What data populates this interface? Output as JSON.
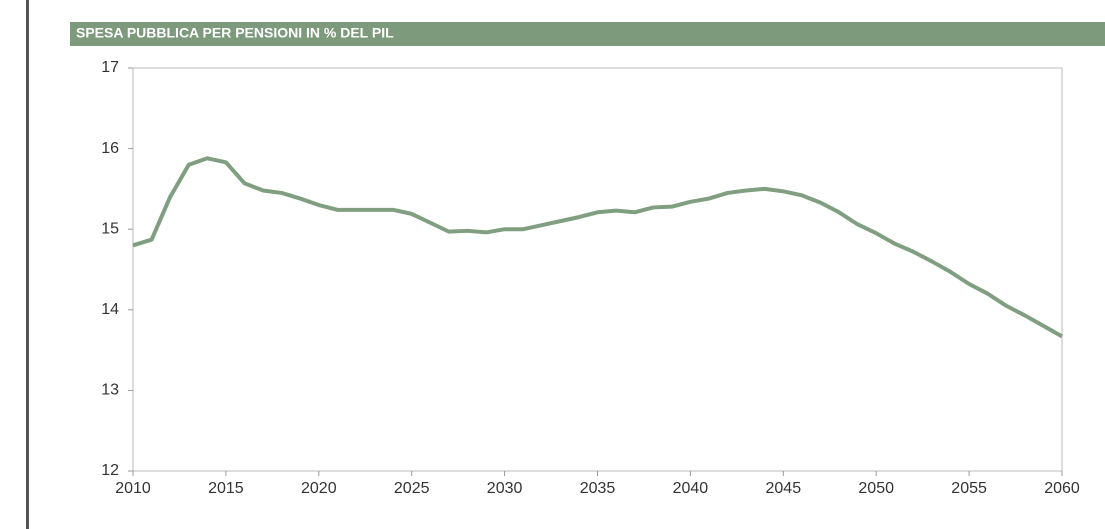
{
  "chart_data": {
    "type": "line",
    "title": "SPESA PUBBLICA PER PENSIONI IN % DEL PIL",
    "x": [
      2010,
      2011,
      2012,
      2013,
      2014,
      2015,
      2016,
      2017,
      2018,
      2019,
      2020,
      2021,
      2022,
      2023,
      2024,
      2025,
      2026,
      2027,
      2028,
      2029,
      2030,
      2031,
      2032,
      2033,
      2034,
      2035,
      2036,
      2037,
      2038,
      2039,
      2040,
      2041,
      2042,
      2043,
      2044,
      2045,
      2046,
      2047,
      2048,
      2049,
      2050,
      2051,
      2052,
      2053,
      2054,
      2055,
      2056,
      2057,
      2058,
      2059,
      2060
    ],
    "values": [
      14.8,
      14.87,
      15.4,
      15.8,
      15.88,
      15.83,
      15.57,
      15.48,
      15.45,
      15.38,
      15.3,
      15.24,
      15.24,
      15.24,
      15.24,
      15.19,
      15.08,
      14.97,
      14.98,
      14.96,
      15.0,
      15.0,
      15.05,
      15.1,
      15.15,
      15.21,
      15.23,
      15.21,
      15.27,
      15.28,
      15.34,
      15.38,
      15.45,
      15.48,
      15.5,
      15.47,
      15.42,
      15.33,
      15.21,
      15.06,
      14.95,
      14.82,
      14.72,
      14.6,
      14.47,
      14.32,
      14.2,
      14.05,
      13.93,
      13.8,
      13.67
    ],
    "color": "#809f80",
    "xlim": [
      2010,
      2060
    ],
    "xticks": [
      2010,
      2015,
      2020,
      2025,
      2030,
      2035,
      2040,
      2045,
      2050,
      2055,
      2060
    ],
    "ylim": [
      12,
      17
    ],
    "yticks": [
      12,
      13,
      14,
      15,
      16,
      17
    ]
  }
}
